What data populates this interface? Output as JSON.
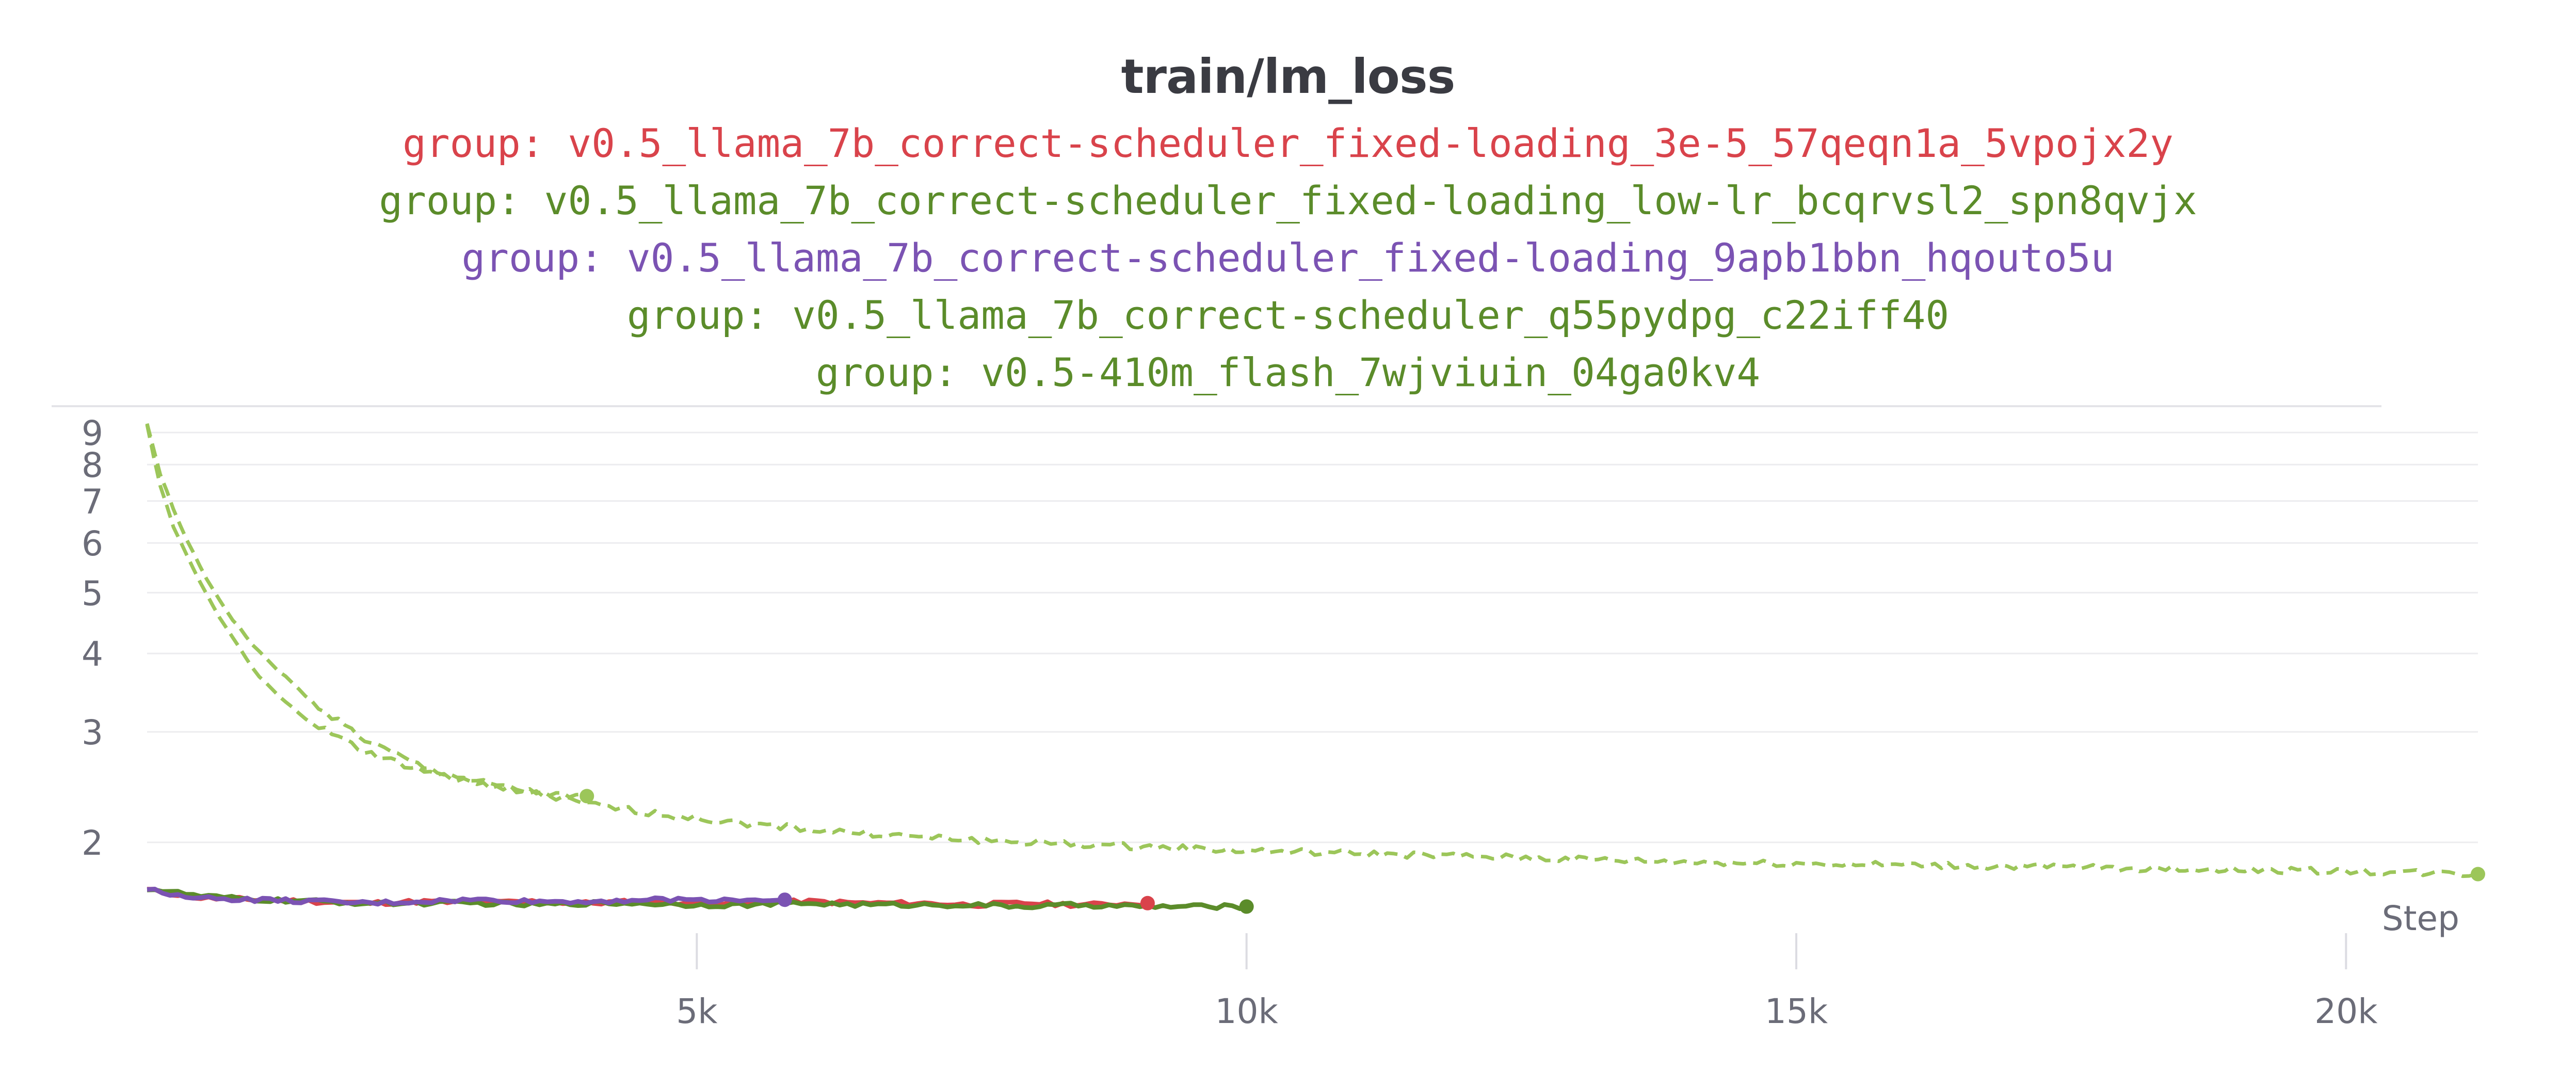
{
  "chart_data": {
    "type": "line",
    "title": "train/lm_loss",
    "xlabel": "Step",
    "ylabel": "",
    "y_scale": "log",
    "xlim": [
      0,
      21200
    ],
    "ylim": [
      1.5,
      9.3
    ],
    "x_ticks": [
      {
        "value": 5000,
        "label": "5k"
      },
      {
        "value": 10000,
        "label": "10k"
      },
      {
        "value": 15000,
        "label": "15k"
      },
      {
        "value": 20000,
        "label": "20k"
      }
    ],
    "y_ticks": [
      {
        "value": 2,
        "label": "2"
      },
      {
        "value": 3,
        "label": "3"
      },
      {
        "value": 4,
        "label": "4"
      },
      {
        "value": 5,
        "label": "5"
      },
      {
        "value": 6,
        "label": "6"
      },
      {
        "value": 7,
        "label": "7"
      },
      {
        "value": 8,
        "label": "8"
      },
      {
        "value": 9,
        "label": "9"
      }
    ],
    "grid": true,
    "legend_position": "top",
    "series": [
      {
        "name": "group: v0.5_llama_7b_correct-scheduler_fixed-loading_3e-5_57qeqn1a_5vpojx2y",
        "color": "#d9434b",
        "dash": false,
        "x": [
          0,
          500,
          1000,
          1500,
          2000,
          2500,
          3000,
          3500,
          4000,
          4500,
          5000,
          5500,
          6000,
          6500,
          7000,
          7500,
          8000,
          8500,
          9100
        ],
        "y": [
          1.68,
          1.63,
          1.62,
          1.61,
          1.6,
          1.61,
          1.6,
          1.61,
          1.6,
          1.61,
          1.6,
          1.6,
          1.61,
          1.6,
          1.6,
          1.59,
          1.6,
          1.59,
          1.6
        ]
      },
      {
        "name": "group: v0.5_llama_7b_correct-scheduler_fixed-loading_low-lr_bcqrvsl2_spn8qvjx",
        "color": "#5b8c2a",
        "dash": false,
        "x": [
          0,
          500,
          1000,
          1500,
          2000,
          2500,
          3000,
          3500,
          4000,
          4500,
          5000,
          5500,
          6000,
          6500,
          7000,
          7500,
          8000,
          8500,
          9000,
          9500,
          10000
        ],
        "y": [
          1.69,
          1.64,
          1.62,
          1.61,
          1.6,
          1.6,
          1.6,
          1.59,
          1.6,
          1.6,
          1.59,
          1.59,
          1.6,
          1.59,
          1.59,
          1.59,
          1.58,
          1.59,
          1.58,
          1.58,
          1.58
        ]
      },
      {
        "name": "group: v0.5_llama_7b_correct-scheduler_fixed-loading_9apb1bbn_hqouto5u",
        "color": "#7b53b3",
        "dash": false,
        "x": [
          0,
          500,
          1000,
          1500,
          2000,
          2500,
          3000,
          3500,
          4000,
          4500,
          5000,
          5500,
          5800
        ],
        "y": [
          1.68,
          1.63,
          1.62,
          1.61,
          1.6,
          1.61,
          1.62,
          1.61,
          1.61,
          1.62,
          1.62,
          1.62,
          1.62
        ]
      },
      {
        "name": "group: v0.5_llama_7b_correct-scheduler_q55pydpg_c22iff40",
        "color": "#9cc65a",
        "dash": true,
        "x": [
          0,
          100,
          250,
          500,
          750,
          1000,
          1250,
          1500,
          1750,
          2000,
          2500,
          3000,
          3500,
          4000
        ],
        "y": [
          9.3,
          7.6,
          6.3,
          5.1,
          4.3,
          3.7,
          3.35,
          3.1,
          2.93,
          2.78,
          2.6,
          2.48,
          2.41,
          2.37
        ]
      },
      {
        "name": "group: v0.5-410m_flash_7wjviuin_04ga0kv4",
        "color": "#9cc65a",
        "dash": true,
        "x": [
          0,
          100,
          250,
          500,
          750,
          1000,
          1500,
          2000,
          2500,
          3000,
          3500,
          4000,
          5000,
          6000,
          7000,
          8000,
          9000,
          10000,
          11000,
          12000,
          13000,
          14000,
          15000,
          16000,
          17000,
          18000,
          19000,
          20000,
          21200
        ],
        "y": [
          9.3,
          7.9,
          6.7,
          5.4,
          4.6,
          4.05,
          3.35,
          2.9,
          2.64,
          2.5,
          2.4,
          2.3,
          2.18,
          2.1,
          2.04,
          2.0,
          1.97,
          1.94,
          1.92,
          1.9,
          1.88,
          1.86,
          1.85,
          1.84,
          1.83,
          1.82,
          1.81,
          1.8,
          1.78
        ]
      }
    ]
  }
}
